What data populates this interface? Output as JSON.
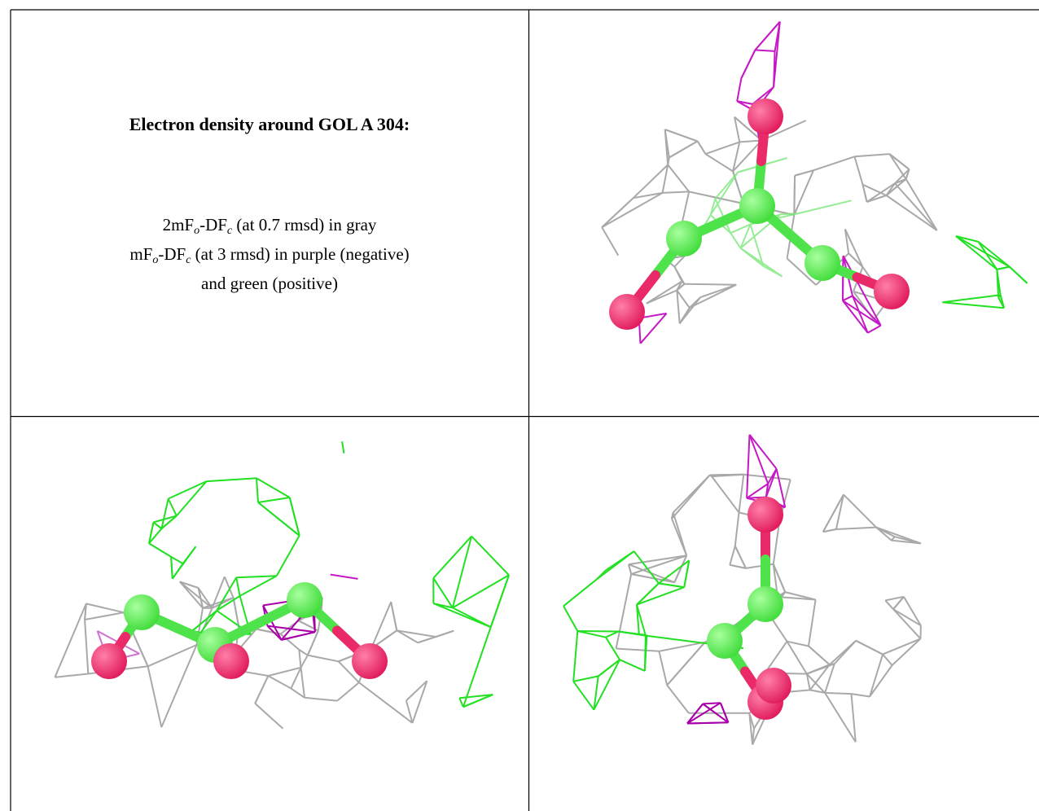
{
  "caption": {
    "title": "Electron density around GOL A 304:",
    "lines": [
      [
        {
          "text": "2mF"
        },
        {
          "sub": "o"
        },
        {
          "text": "-DF"
        },
        {
          "sub": "c"
        },
        {
          "text": " (at 0.7 rmsd) in gray"
        }
      ],
      [
        {
          "text": "mF"
        },
        {
          "sub": "o"
        },
        {
          "text": "-DF"
        },
        {
          "sub": "c"
        },
        {
          "text": " (at 3 rmsd) in purple (negative)"
        }
      ],
      [
        {
          "text": "and green (positive)"
        }
      ]
    ]
  }
}
